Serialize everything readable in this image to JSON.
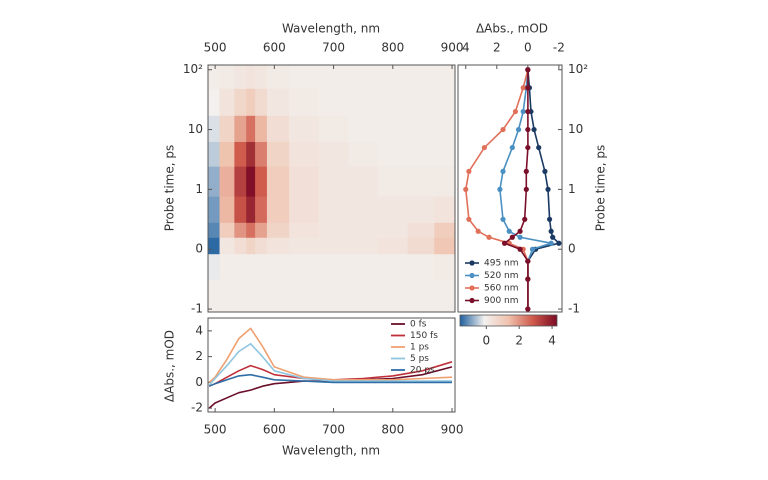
{
  "chart_data": [
    {
      "type": "heatmap",
      "xlabel": "Wavelength, nm",
      "ylabel": "Probe time, ps",
      "xlim": [
        488,
        905
      ],
      "xticks": [
        500,
        600,
        700,
        800,
        900
      ],
      "ylim": [
        -1.12,
        120
      ],
      "yscale": "symlog",
      "linthresh": 1,
      "yticks": [
        -1,
        0,
        1,
        10,
        {
          "value": 100,
          "label": "10²"
        }
      ],
      "x": [
        495,
        520,
        545,
        560,
        575,
        600,
        650,
        700,
        750,
        800,
        850,
        890
      ],
      "y": [
        -0.75,
        -0.25,
        0.1,
        0.3,
        0.6,
        1.5,
        4,
        10,
        30,
        80
      ],
      "z": [
        [
          0,
          0,
          0,
          0,
          0,
          0,
          0,
          0,
          0,
          0,
          0,
          0
        ],
        [
          -0.2,
          0,
          0,
          0,
          0,
          0,
          0,
          0,
          0,
          0,
          0,
          0.1
        ],
        [
          -1.5,
          0.2,
          0.5,
          0.8,
          0.5,
          0.3,
          0.2,
          0.2,
          0.2,
          0.3,
          0.6,
          1.2
        ],
        [
          -1.2,
          1.0,
          2.0,
          2.5,
          1.8,
          0.8,
          0.3,
          0.2,
          0.2,
          0.2,
          0.4,
          1.0
        ],
        [
          -1.0,
          1.5,
          3.0,
          3.8,
          2.6,
          1.0,
          0.4,
          0.2,
          0.2,
          0.2,
          0.2,
          0.3
        ],
        [
          -0.8,
          1.6,
          3.3,
          4.2,
          2.8,
          1.0,
          0.4,
          0.2,
          0.2,
          0.1,
          0.1,
          0.1
        ],
        [
          -0.5,
          1.3,
          2.8,
          3.6,
          2.3,
          0.8,
          0.3,
          0.2,
          0.1,
          0,
          0,
          0
        ],
        [
          -0.3,
          0.8,
          1.8,
          2.5,
          1.5,
          0.5,
          0.2,
          0.1,
          0,
          0,
          0,
          0
        ],
        [
          -0.1,
          0.3,
          0.7,
          1.0,
          0.6,
          0.2,
          0.1,
          0,
          0,
          0,
          0,
          0
        ],
        [
          0,
          0.1,
          0.2,
          0.3,
          0.2,
          0.1,
          0,
          0,
          0,
          0,
          0,
          0
        ]
      ],
      "colormap": [
        "#1f5f9e",
        "#f3f1ef",
        "#efc2ad",
        "#cf5a4c",
        "#7a0a24"
      ],
      "clim": [
        -1.6,
        4.3
      ],
      "cticks": [
        0,
        2,
        4
      ]
    },
    {
      "type": "kinetics",
      "xlabel": "ΔAbs., mOD",
      "ylabel": "Probe time, ps",
      "xlim": [
        4.5,
        -2.2
      ],
      "xticks": [
        4,
        2,
        0,
        -2
      ],
      "ylim": [
        -1.12,
        120
      ],
      "yscale": "symlog",
      "linthresh": 1,
      "yticks": [
        -1,
        0,
        1,
        10,
        {
          "value": 100,
          "label": "10²"
        }
      ],
      "y": [
        -1,
        -0.5,
        -0.2,
        0,
        0.1,
        0.2,
        0.3,
        0.5,
        1,
        2,
        5,
        10,
        20,
        50,
        100
      ],
      "legend": "lower left",
      "series": [
        {
          "name": "495 nm",
          "color": "#1b3a63",
          "values": [
            0,
            0,
            0,
            -0.5,
            -2.0,
            -1.6,
            -1.5,
            -1.4,
            -1.3,
            -1.1,
            -0.7,
            -0.4,
            -0.2,
            -0.1,
            0
          ]
        },
        {
          "name": "520 nm",
          "color": "#4a90c2",
          "values": [
            0,
            0,
            0,
            -0.3,
            -1.5,
            0.5,
            1.2,
            1.6,
            1.8,
            1.6,
            1.0,
            0.6,
            0.3,
            0.1,
            0
          ]
        },
        {
          "name": "560 nm",
          "color": "#e0705a",
          "values": [
            0,
            0,
            0,
            0.3,
            1.2,
            2.5,
            3.2,
            3.8,
            4.0,
            3.8,
            2.8,
            1.6,
            0.8,
            0.3,
            0
          ]
        },
        {
          "name": "900 nm",
          "color": "#7a0f2a",
          "values": [
            0,
            0,
            0,
            0.5,
            1.5,
            1.0,
            0.5,
            0.2,
            0.1,
            0.1,
            0,
            0,
            0,
            0,
            0
          ]
        }
      ]
    },
    {
      "type": "line",
      "xlabel": "Wavelength, nm",
      "ylabel": "ΔAbs., mOD",
      "xlim": [
        488,
        905
      ],
      "xticks": [
        500,
        600,
        700,
        800,
        900
      ],
      "ylim": [
        -2.3,
        5
      ],
      "yticks": [
        -2,
        0,
        2,
        4
      ],
      "legend": "upper right",
      "x": [
        490,
        500,
        520,
        540,
        560,
        580,
        600,
        650,
        700,
        750,
        800,
        850,
        900
      ],
      "series": [
        {
          "name": "0 fs",
          "color": "#6b0f2a",
          "values": [
            -2.0,
            -1.6,
            -1.2,
            -0.8,
            -0.6,
            -0.3,
            -0.1,
            0.1,
            0.1,
            0.2,
            0.3,
            0.6,
            1.2
          ]
        },
        {
          "name": "150 fs",
          "color": "#c0303a",
          "values": [
            -0.3,
            -0.1,
            0.4,
            0.9,
            1.3,
            1.0,
            0.6,
            0.3,
            0.2,
            0.3,
            0.5,
            0.9,
            1.6
          ]
        },
        {
          "name": "1 ps",
          "color": "#f0a070",
          "values": [
            0,
            0.4,
            1.8,
            3.4,
            4.2,
            2.8,
            1.2,
            0.4,
            0.2,
            0.2,
            0.2,
            0.3,
            0.4
          ]
        },
        {
          "name": "5 ps",
          "color": "#8ec5e0",
          "values": [
            -0.2,
            0.3,
            1.3,
            2.4,
            3.0,
            2.0,
            0.9,
            0.3,
            0.1,
            0.1,
            0.1,
            0.1,
            0.1
          ]
        },
        {
          "name": "20 ps",
          "color": "#2f6ea6",
          "values": [
            -0.3,
            -0.1,
            0.2,
            0.5,
            0.6,
            0.4,
            0.2,
            0.1,
            0,
            0,
            0,
            0,
            0
          ]
        }
      ]
    }
  ]
}
